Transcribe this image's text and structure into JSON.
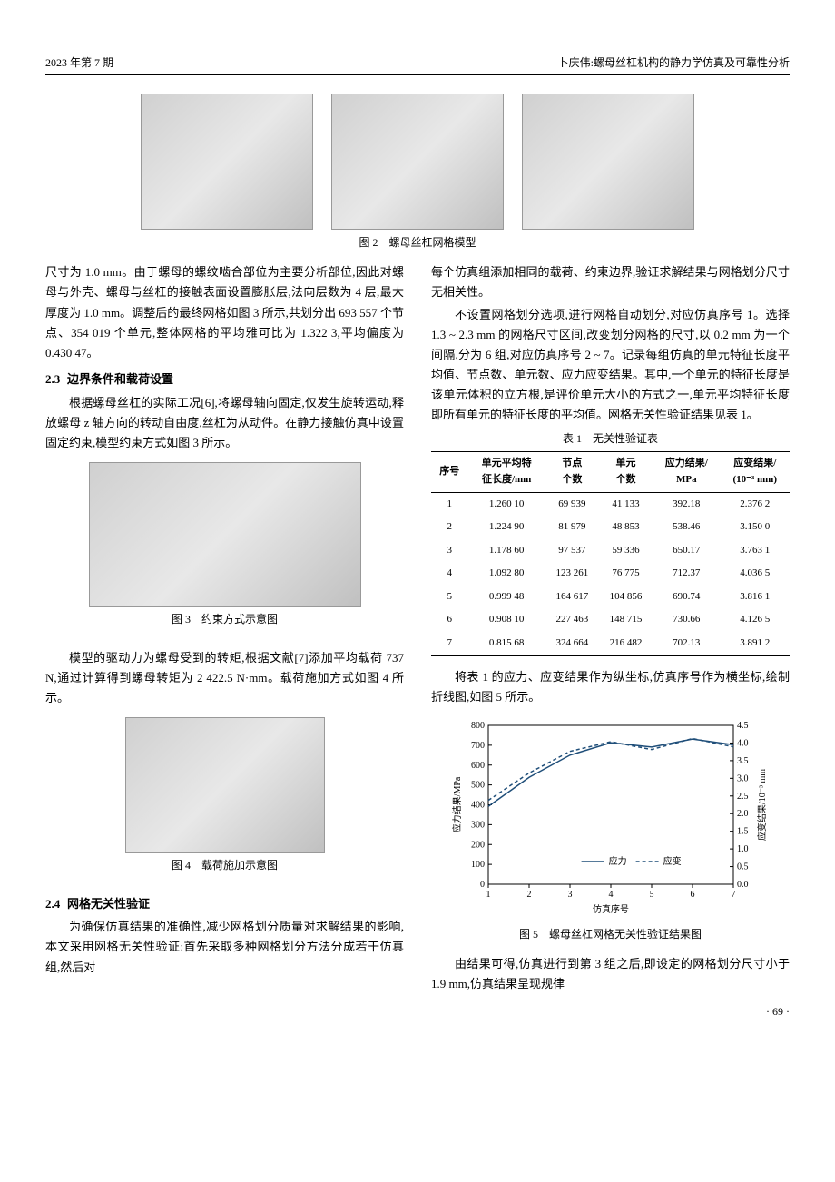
{
  "header": {
    "left": "2023 年第 7 期",
    "right": "卜庆伟:螺母丝杠机构的静力学仿真及可靠性分析"
  },
  "fig2": {
    "caption": "图 2　螺母丝杠网格模型"
  },
  "colL": {
    "p1": "尺寸为 1.0 mm。由于螺母的螺纹啮合部位为主要分析部位,因此对螺母与外壳、螺母与丝杠的接触表面设置膨胀层,法向层数为 4 层,最大厚度为 1.0 mm。调整后的最终网格如图 3 所示,共划分出 693 557 个节点、354 019 个单元,整体网格的平均雅可比为 1.322 3,平均偏度为 0.430 47。",
    "sec23_num": "2.3",
    "sec23_title": "边界条件和载荷设置",
    "p2": "根据螺母丝杠的实际工况[6],将螺母轴向固定,仅发生旋转运动,释放螺母 z 轴方向的转动自由度,丝杠为从动件。在静力接触仿真中设置固定约束,模型约束方式如图 3 所示。",
    "fig3_caption": "图 3　约束方式示意图",
    "p3": "模型的驱动力为螺母受到的转矩,根据文献[7]添加平均载荷 737 N,通过计算得到螺母转矩为 2 422.5 N·mm。载荷施加方式如图 4 所示。",
    "fig4_caption": "图 4　载荷施加示意图",
    "sec24_num": "2.4",
    "sec24_title": "网格无关性验证",
    "p4": "为确保仿真结果的准确性,减少网格划分质量对求解结果的影响,本文采用网格无关性验证:首先采取多种网格划分方法分成若干仿真组,然后对"
  },
  "colR": {
    "p1": "每个仿真组添加相同的载荷、约束边界,验证求解结果与网格划分尺寸无相关性。",
    "p2": "不设置网格划分选项,进行网格自动划分,对应仿真序号 1。选择 1.3 ~ 2.3 mm 的网格尺寸区间,改变划分网格的尺寸,以 0.2 mm 为一个间隔,分为 6 组,对应仿真序号 2 ~ 7。记录每组仿真的单元特征长度平均值、节点数、单元数、应力应变结果。其中,一个单元的特征长度是该单元体积的立方根,是评价单元大小的方式之一,单元平均特征长度即所有单元的特征长度的平均值。网格无关性验证结果见表 1。",
    "table1_title": "表 1　无关性验证表",
    "table1": {
      "columns": [
        "序号",
        "单元平均特\n征长度/mm",
        "节点\n个数",
        "单元\n个数",
        "应力结果/\nMPa",
        "应变结果/\n(10⁻³ mm)"
      ],
      "rows": [
        [
          "1",
          "1.260 10",
          "69 939",
          "41 133",
          "392.18",
          "2.376 2"
        ],
        [
          "2",
          "1.224 90",
          "81 979",
          "48 853",
          "538.46",
          "3.150 0"
        ],
        [
          "3",
          "1.178 60",
          "97 537",
          "59 336",
          "650.17",
          "3.763 1"
        ],
        [
          "4",
          "1.092 80",
          "123 261",
          "76 775",
          "712.37",
          "4.036 5"
        ],
        [
          "5",
          "0.999 48",
          "164 617",
          "104 856",
          "690.74",
          "3.816 1"
        ],
        [
          "6",
          "0.908 10",
          "227 463",
          "148 715",
          "730.66",
          "4.126 5"
        ],
        [
          "7",
          "0.815 68",
          "324 664",
          "216 482",
          "702.13",
          "3.891 2"
        ]
      ]
    },
    "p3": "将表 1 的应力、应变结果作为纵坐标,仿真序号作为横坐标,绘制折线图,如图 5 所示。",
    "fig5_caption": "图 5　螺母丝杠网格无关性验证结果图",
    "p4": "由结果可得,仿真进行到第 3 组之后,即设定的网格划分尺寸小于 1.9 mm,仿真结果呈现规律"
  },
  "chart5": {
    "type": "line",
    "x": [
      1,
      2,
      3,
      4,
      5,
      6,
      7
    ],
    "series": [
      {
        "name": "应力",
        "values": [
          392.18,
          538.46,
          650.17,
          712.37,
          690.74,
          730.66,
          702.13
        ],
        "color": "#1f4e79",
        "dash": "none"
      },
      {
        "name": "应变",
        "values": [
          2.3762,
          3.15,
          3.7631,
          4.0365,
          3.8161,
          4.1265,
          3.8912
        ],
        "color": "#1f4e79",
        "dash": "4,3"
      }
    ],
    "y1_label": "应力结果/MPa",
    "y2_label": "应变结果/10⁻³ mm",
    "x_label": "仿真序号",
    "y1_lim": [
      0,
      800
    ],
    "y1_step": 100,
    "y2_lim": [
      0,
      4.5
    ],
    "y2_step": 0.5,
    "legend": [
      "应力",
      "应变"
    ],
    "background": "#ffffff",
    "grid_color": "#cccccc",
    "axis_color": "#000000",
    "font_size": 10
  },
  "page_num": "· 69 ·"
}
